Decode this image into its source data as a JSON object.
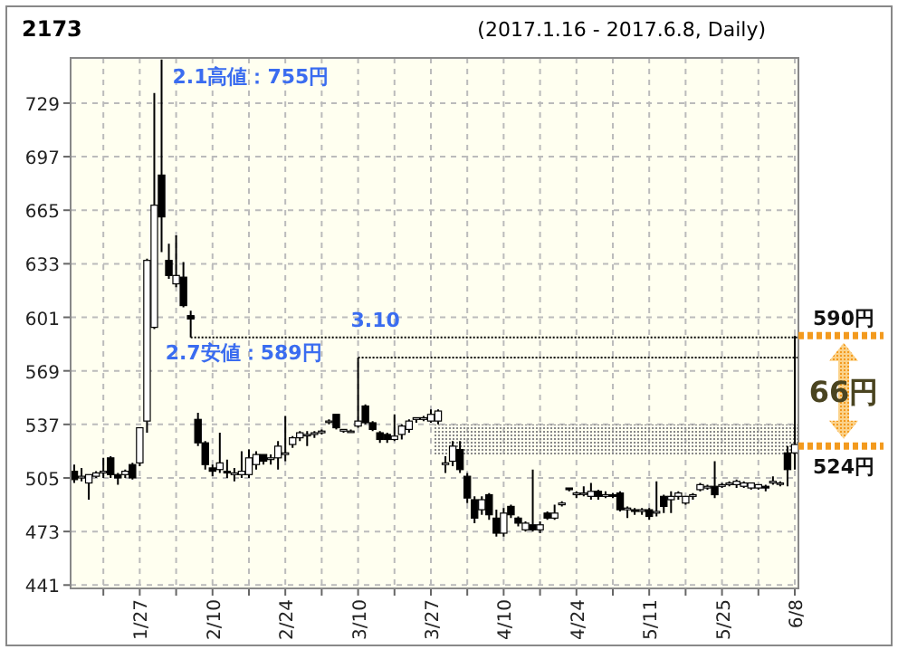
{
  "chart_data": {
    "type": "candlestick",
    "title": "2173",
    "subtitle": "(2017.1.16 - 2017.6.8, Daily)",
    "categories": [
      null,
      null,
      null,
      null,
      null,
      null,
      null,
      null,
      null,
      "1/27",
      null,
      null,
      null,
      null,
      null,
      null,
      null,
      null,
      null,
      "2/10",
      null,
      null,
      null,
      null,
      null,
      null,
      null,
      null,
      null,
      "2/24",
      null,
      null,
      null,
      null,
      null,
      null,
      null,
      null,
      null,
      "3/10",
      null,
      null,
      null,
      null,
      null,
      null,
      null,
      null,
      null,
      "3/27",
      null,
      null,
      null,
      null,
      null,
      null,
      null,
      null,
      null,
      "4/10",
      null,
      null,
      null,
      null,
      null,
      null,
      null,
      null,
      null,
      "4/24",
      null,
      null,
      null,
      null,
      null,
      null,
      null,
      null,
      null,
      "5/11",
      null,
      null,
      null,
      null,
      null,
      null,
      null,
      null,
      null,
      "5/25",
      null,
      null,
      null,
      null,
      null,
      null,
      null,
      null,
      null,
      "6/8"
    ],
    "ohlc": [
      [
        509,
        513,
        502,
        504
      ],
      [
        505,
        511,
        503,
        506
      ],
      [
        502,
        507,
        492,
        507
      ],
      [
        506,
        509,
        505,
        508
      ],
      [
        508,
        517,
        505,
        509
      ],
      [
        517,
        518,
        505,
        507
      ],
      [
        507,
        508,
        501,
        505
      ],
      [
        507,
        510,
        505,
        509
      ],
      [
        513,
        514,
        504,
        505
      ],
      [
        514,
        535,
        512,
        535
      ],
      [
        539,
        636,
        532,
        635
      ],
      [
        595,
        735,
        594,
        668
      ],
      [
        686,
        755,
        640,
        661
      ],
      [
        635,
        645,
        624,
        626
      ],
      [
        621,
        650,
        619,
        626
      ],
      [
        625,
        634,
        607,
        608
      ],
      [
        602,
        605,
        589,
        600
      ],
      [
        540,
        544,
        524,
        526
      ],
      [
        526,
        527,
        510,
        513
      ],
      [
        511,
        513,
        506,
        509
      ],
      [
        510,
        532,
        508,
        514
      ],
      [
        509,
        516,
        505,
        508
      ],
      [
        507,
        511,
        503,
        508
      ],
      [
        507,
        521,
        505,
        509
      ],
      [
        507,
        522,
        505,
        517
      ],
      [
        513,
        521,
        510,
        519
      ],
      [
        519,
        519,
        513,
        515
      ],
      [
        516,
        519,
        513,
        517
      ],
      [
        517,
        527,
        510,
        524
      ],
      [
        519,
        542,
        515,
        520
      ],
      [
        525,
        530,
        523,
        529
      ],
      [
        529,
        533,
        527,
        532
      ],
      [
        531,
        533,
        524,
        531
      ],
      [
        531,
        533,
        529,
        532
      ],
      [
        532,
        534,
        531,
        533
      ],
      [
        539,
        540,
        537,
        539
      ],
      [
        543,
        543,
        534,
        535
      ],
      [
        533,
        534,
        532,
        534
      ],
      [
        533,
        534,
        532,
        533
      ],
      [
        536,
        577,
        535,
        539
      ],
      [
        548,
        549,
        537,
        538
      ],
      [
        538,
        539,
        533,
        534
      ],
      [
        532,
        533,
        526,
        528
      ],
      [
        531,
        532,
        526,
        528
      ],
      [
        528,
        543,
        527,
        530
      ],
      [
        531,
        537,
        528,
        536
      ],
      [
        534,
        540,
        532,
        539
      ],
      [
        540,
        541,
        538,
        541
      ],
      [
        540,
        542,
        539,
        541
      ],
      [
        539,
        546,
        538,
        543
      ],
      [
        539,
        546,
        537,
        545
      ],
      [
        513,
        518,
        508,
        514
      ],
      [
        515,
        527,
        512,
        524
      ],
      [
        522,
        527,
        508,
        510
      ],
      [
        506,
        508,
        490,
        493
      ],
      [
        492,
        494,
        478,
        481
      ],
      [
        486,
        494,
        483,
        492
      ],
      [
        495,
        496,
        480,
        483
      ],
      [
        481,
        486,
        470,
        472
      ],
      [
        472,
        487,
        470,
        484
      ],
      [
        488,
        489,
        481,
        483
      ],
      [
        481,
        482,
        476,
        478
      ],
      [
        474,
        479,
        473,
        478
      ],
      [
        477,
        510,
        473,
        474
      ],
      [
        474,
        479,
        472,
        477
      ],
      [
        484,
        485,
        480,
        481
      ],
      [
        481,
        489,
        480,
        484
      ],
      [
        489,
        491,
        488,
        490
      ],
      [
        499,
        499,
        497,
        498
      ],
      [
        495,
        497,
        493,
        496
      ],
      [
        496,
        500,
        494,
        496
      ],
      [
        494,
        502,
        492,
        497
      ],
      [
        497,
        498,
        492,
        494
      ],
      [
        494,
        497,
        493,
        495
      ],
      [
        495,
        496,
        493,
        494
      ],
      [
        496,
        497,
        485,
        486
      ],
      [
        486,
        488,
        481,
        487
      ],
      [
        486,
        487,
        483,
        485
      ],
      [
        485,
        487,
        483,
        486
      ],
      [
        486,
        487,
        480,
        482
      ],
      [
        484,
        503,
        482,
        485
      ],
      [
        494,
        495,
        484,
        488
      ],
      [
        492,
        497,
        484,
        494
      ],
      [
        494,
        497,
        492,
        496
      ],
      [
        490,
        494,
        489,
        494
      ],
      [
        494,
        496,
        492,
        495
      ],
      [
        498,
        502,
        497,
        501
      ],
      [
        499,
        501,
        498,
        500
      ],
      [
        500,
        515,
        493,
        495
      ],
      [
        500,
        502,
        499,
        501
      ],
      [
        501,
        503,
        500,
        502
      ],
      [
        501,
        504,
        499,
        503
      ],
      [
        500,
        503,
        499,
        502
      ],
      [
        499,
        502,
        498,
        502
      ],
      [
        499,
        501,
        498,
        501
      ],
      [
        500,
        501,
        497,
        499
      ],
      [
        502,
        506,
        501,
        503
      ],
      [
        502,
        503,
        500,
        502
      ],
      [
        520,
        524,
        500,
        510
      ],
      [
        520,
        590,
        510,
        525
      ]
    ],
    "ylim": [
      439,
      756
    ],
    "yticks": [
      441,
      473,
      505,
      537,
      569,
      601,
      633,
      665,
      697,
      729
    ],
    "grid": true,
    "ref_lines": [
      {
        "axis": "y",
        "value": 589,
        "label": "2.7安値：589円",
        "line_style": "dotted",
        "color": "#000000"
      },
      {
        "axis": "y",
        "value": 577,
        "line_style": "dotted",
        "color": "#000000"
      }
    ],
    "bands": [
      {
        "axis": "y",
        "from": 519,
        "to": 537,
        "color": "#888888"
      }
    ],
    "annotations": [
      "2.1高値：755円",
      "3.10",
      {
        "text": "590円",
        "x": "6/8",
        "y": 590
      },
      {
        "text": "524円",
        "x": "6/8",
        "y": 524
      },
      "66円"
    ]
  }
}
